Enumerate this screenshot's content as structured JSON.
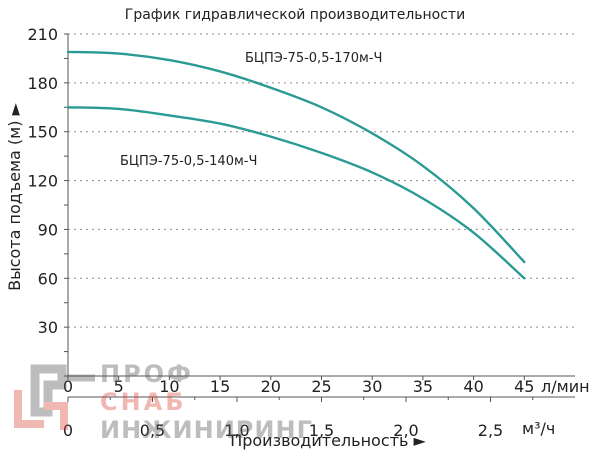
{
  "chart_data": {
    "type": "line",
    "title": "График гидравлической производительности",
    "xlabel": "Производительность ►",
    "ylabel": "Высота подъема (м) ►",
    "x_unit_primary": "л/мин",
    "x_unit_secondary": "м³/ч",
    "xlim": [
      0,
      50
    ],
    "ylim": [
      0,
      210
    ],
    "x_ticks": [
      0,
      5,
      10,
      15,
      20,
      25,
      30,
      35,
      40,
      45
    ],
    "y_ticks": [
      30,
      60,
      90,
      120,
      150,
      180,
      210
    ],
    "x2_ticks": [
      {
        "label": "0",
        "value": 0
      },
      {
        "label": "0,5",
        "value": 0.5
      },
      {
        "label": "1,0",
        "value": 1.0
      },
      {
        "label": "1,5",
        "value": 1.5
      },
      {
        "label": "2,0",
        "value": 2.0
      },
      {
        "label": "2,5",
        "value": 2.5
      }
    ],
    "grid": true,
    "series": [
      {
        "name": "БЦПЭ-75-0,5-170м-Ч",
        "color": "#2a9a94",
        "x": [
          0,
          5,
          10,
          15,
          20,
          25,
          30,
          35,
          40,
          45
        ],
        "y": [
          199,
          198,
          194,
          187,
          177,
          165,
          149,
          129,
          103,
          70
        ]
      },
      {
        "name": "БЦПЭ-75-0,5-140м-Ч",
        "color": "#2a9a94",
        "x": [
          0,
          5,
          10,
          15,
          20,
          25,
          30,
          35,
          40,
          45
        ],
        "y": [
          165,
          164,
          160,
          155,
          147,
          137,
          125,
          109,
          88,
          60
        ]
      }
    ]
  },
  "watermark": {
    "line1": "ПРОФ",
    "line2": "СНАБ",
    "line3": "ИНЖИНИРИНГ",
    "color": "#d8433b"
  }
}
